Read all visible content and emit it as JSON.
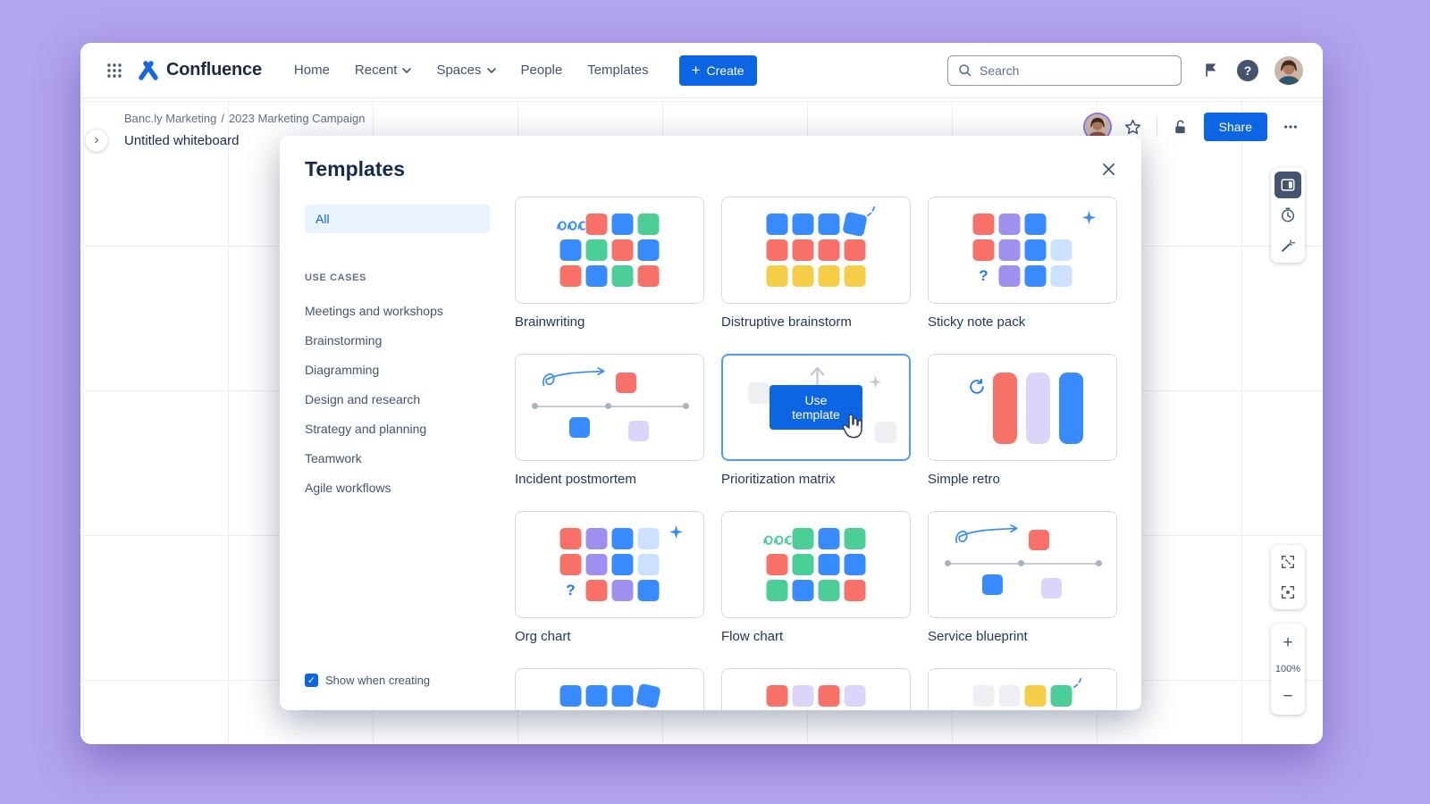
{
  "palette": {
    "O": "#f87168",
    "B": "#388bff",
    "G": "#4bce97",
    "Y": "#f5cd47",
    "P": "#9f8fef",
    "L": "#cce0ff",
    "LP": "#dcd5fa",
    "F": "#edeff3"
  },
  "icons": {
    "plus": "+",
    "zoom_in": "+",
    "zoom_out": "−",
    "chevron_right": "›",
    "help": "?",
    "check": "✓",
    "question": "?",
    "breadcrumb_separator": "/"
  },
  "colors": {
    "primary_blue": "#0c66e4",
    "brand_blue": "#1868db",
    "hover_border": "#4b9dff",
    "backdrop_purple": "#b3a4ef"
  },
  "app": {
    "brand": "Confluence",
    "nav": [
      "Home",
      "Recent",
      "Spaces",
      "People",
      "Templates"
    ],
    "create_label": "Create",
    "search_placeholder": "Search"
  },
  "breadcrumb": {
    "space": "Banc.ly Marketing",
    "page": "2023 Marketing Campaign",
    "title": "Untitled whiteboard"
  },
  "board": {
    "share_label": "Share",
    "zoom_level": "100%"
  },
  "modal": {
    "title": "Templates",
    "use_template_label": "Use template",
    "show_when_creating": "Show when creating",
    "sidebar": {
      "all_label": "All",
      "section_header": "USE CASES",
      "items": [
        "Meetings and workshops",
        "Brainstorming",
        "Diagramming",
        "Design and research",
        "Strategy and planning",
        "Teamwork",
        "Agile workflows"
      ]
    },
    "templates": [
      {
        "name": "Brainwriting",
        "thumb": {
          "kind": "grid",
          "rows": [
            [
              "~",
              "O",
              "B",
              "G"
            ],
            [
              "B",
              "G",
              "O",
              "B"
            ],
            [
              "O",
              "B",
              "G",
              "O"
            ]
          ]
        }
      },
      {
        "name": "Distruptive brainstorm",
        "thumb": {
          "kind": "grid",
          "rows": [
            [
              "B",
              "B",
              "B",
              "B*"
            ],
            [
              "O",
              "O",
              "O",
              "O"
            ],
            [
              "Y",
              "Y",
              "Y",
              "Y"
            ]
          ],
          "decor": [
            "lines"
          ]
        }
      },
      {
        "name": "Sticky note pack",
        "thumb": {
          "kind": "grid",
          "rows": [
            [
              "O",
              "P",
              "B",
              "."
            ],
            [
              "O",
              "P",
              "B",
              "L"
            ],
            [
              "?",
              "P",
              "B",
              "L"
            ]
          ],
          "decor": [
            "sparkle"
          ]
        }
      },
      {
        "name": "Incident postmortem",
        "thumb": {
          "kind": "timeline"
        }
      },
      {
        "name": "Prioritization matrix",
        "thumb": {
          "kind": "hover"
        }
      },
      {
        "name": "Simple retro",
        "thumb": {
          "kind": "retro"
        }
      },
      {
        "name": "Org chart",
        "thumb": {
          "kind": "grid",
          "rows": [
            [
              "O",
              "P",
              "B",
              "L"
            ],
            [
              "O",
              "P",
              "B",
              "L"
            ],
            [
              "?",
              "O",
              "P",
              "B"
            ]
          ],
          "decor": [
            "sparkle"
          ]
        }
      },
      {
        "name": "Flow chart",
        "thumb": {
          "kind": "grid",
          "rows": [
            [
              "~G",
              "G",
              "B",
              "G"
            ],
            [
              "O",
              "G",
              "B",
              "B"
            ],
            [
              "G",
              "B",
              "G",
              "O"
            ]
          ]
        }
      },
      {
        "name": "Service blueprint",
        "thumb": {
          "kind": "timeline"
        }
      },
      {
        "name": "",
        "thumb": {
          "kind": "grid",
          "rows": [
            [
              "B",
              "B",
              "B",
              "B*"
            ],
            [
              "O",
              "O",
              "O",
              "O"
            ],
            [
              "Y",
              "Y",
              "Y",
              "Y"
            ]
          ]
        }
      },
      {
        "name": "",
        "thumb": {
          "kind": "grid",
          "rows": [
            [
              "O",
              "LP",
              "O",
              "LP"
            ],
            [
              "O",
              "LP",
              "O",
              "LP"
            ],
            [
              "O",
              "LP",
              "O",
              "LP"
            ]
          ]
        }
      },
      {
        "name": "",
        "thumb": {
          "kind": "grid",
          "rows": [
            [
              "F",
              "F",
              "Y",
              "G"
            ],
            [
              "F",
              "F",
              "F",
              "F"
            ],
            [
              "F",
              "F",
              "F",
              "F"
            ]
          ],
          "decor": [
            "lines"
          ]
        }
      }
    ]
  }
}
